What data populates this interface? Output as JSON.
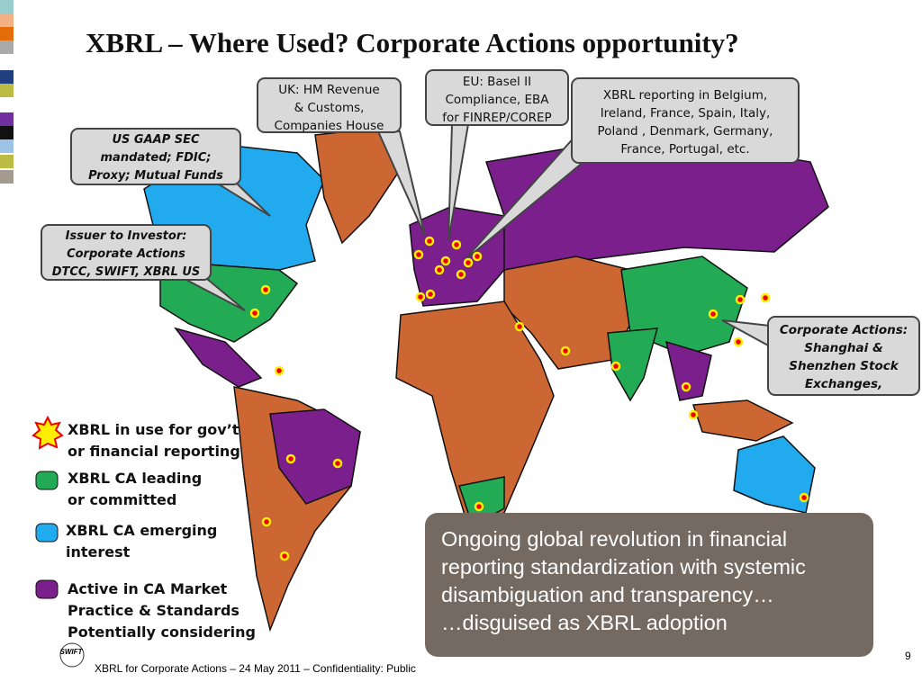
{
  "title": "XBRL – Where Used? Corporate Actions opportunity?",
  "callouts": [
    {
      "lines": [
        "UK:  HM Revenue",
        "& Customs,",
        "Companies House"
      ]
    },
    {
      "lines": [
        "EU:  Basel II",
        "Compliance, EBA",
        "for FINREP/COREP"
      ]
    },
    {
      "lines": [
        "XBRL reporting in Belgium,",
        "Ireland, France, Spain, Italy,",
        "Poland , Denmark, Germany,",
        "France, Portugal, etc."
      ]
    },
    {
      "lines": [
        "US GAAP SEC",
        "mandated; FDIC;",
        "Proxy; Mutual Funds"
      ]
    },
    {
      "lines": [
        "Issuer to Investor:",
        "Corporate Actions",
        "DTCC, SWIFT, XBRL US"
      ]
    },
    {
      "lines": [
        "Corporate Actions:",
        "Shanghai &",
        "Shenzhen Stock",
        "Exchanges,"
      ]
    }
  ],
  "legend": [
    {
      "lines": [
        "XBRL in use for gov’t",
        "or financial reporting"
      ]
    },
    {
      "lines": [
        "XBRL CA leading",
        "or committed"
      ]
    },
    {
      "lines": [
        "XBRL CA emerging",
        "interest"
      ]
    },
    {
      "lines": [
        "Active in CA Market",
        "Practice & Standards",
        "Potentially considering"
      ]
    }
  ],
  "summary": {
    "lines": [
      "Ongoing global revolution in financial",
      "reporting standardization with systemic",
      "disambiguation and transparency…",
      "…disguised as XBRL adoption"
    ]
  },
  "logo": "SWIFT",
  "footer": "XBRL for Corporate Actions –  24 May 2011 – Confidentiality: Public",
  "page_number": "9"
}
